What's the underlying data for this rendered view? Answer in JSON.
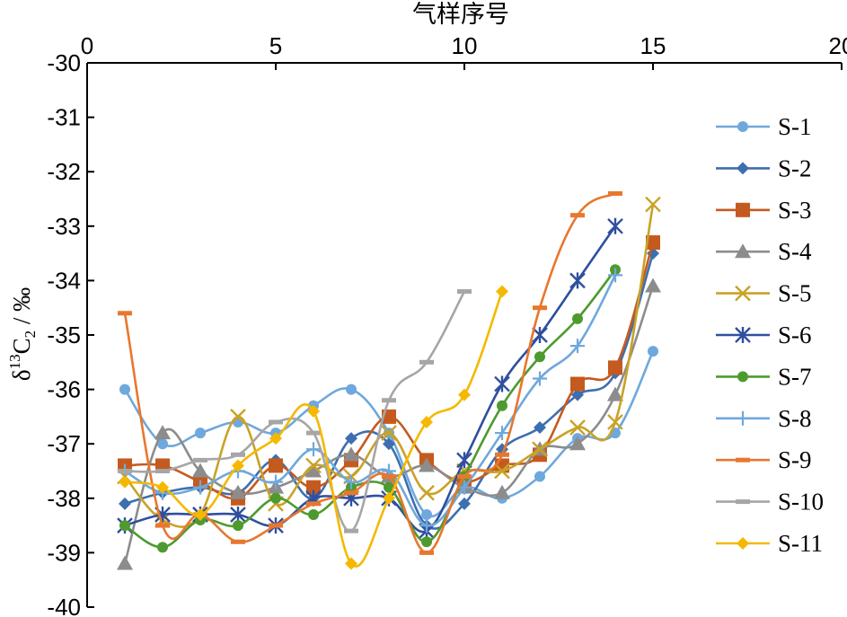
{
  "chart_data": {
    "type": "line",
    "xlabel": "气样序号",
    "ylabel": {
      "prefix": "δ",
      "sup": "13",
      "main": "C",
      "sub": "2",
      "suffix": " / ‰"
    },
    "xlim": [
      0,
      20
    ],
    "ylim": [
      -40,
      -30
    ],
    "x_ticks": [
      "0",
      "5",
      "10",
      "15",
      "20"
    ],
    "y_ticks": [
      "-30",
      "-31",
      "-32",
      "-33",
      "-34",
      "-35",
      "-36",
      "-37",
      "-38",
      "-39",
      "-40"
    ],
    "x_axis_position": "top",
    "y_axis_inverted": true,
    "grid": false,
    "legend_position": "right",
    "series": [
      {
        "name": "S-1",
        "color": "#6fa8dc",
        "marker": "circle",
        "points": [
          [
            1,
            -36.0
          ],
          [
            2,
            -37.0
          ],
          [
            3,
            -36.8
          ],
          [
            4,
            -36.6
          ],
          [
            5,
            -36.8
          ],
          [
            6,
            -36.3
          ],
          [
            7,
            -36.0
          ],
          [
            8,
            -36.8
          ],
          [
            9,
            -38.3
          ],
          [
            10,
            -37.8
          ],
          [
            11,
            -38.0
          ],
          [
            12,
            -37.6
          ],
          [
            13,
            -36.9
          ],
          [
            14,
            -36.8
          ],
          [
            15,
            -35.3
          ]
        ]
      },
      {
        "name": "S-2",
        "color": "#3d6fb0",
        "marker": "diamond",
        "points": [
          [
            1,
            -38.1
          ],
          [
            2,
            -37.9
          ],
          [
            3,
            -37.8
          ],
          [
            4,
            -37.9
          ],
          [
            5,
            -37.3
          ],
          [
            6,
            -38.0
          ],
          [
            7,
            -36.9
          ],
          [
            8,
            -37.0
          ],
          [
            9,
            -38.5
          ],
          [
            10,
            -38.1
          ],
          [
            11,
            -37.1
          ],
          [
            12,
            -36.7
          ],
          [
            13,
            -36.1
          ],
          [
            14,
            -35.7
          ],
          [
            15,
            -33.5
          ]
        ]
      },
      {
        "name": "S-3",
        "color": "#c55a1f",
        "marker": "square",
        "points": [
          [
            1,
            -37.4
          ],
          [
            2,
            -37.4
          ],
          [
            3,
            -37.7
          ],
          [
            4,
            -38.0
          ],
          [
            5,
            -37.4
          ],
          [
            6,
            -37.8
          ],
          [
            7,
            -37.3
          ],
          [
            8,
            -36.5
          ],
          [
            9,
            -37.3
          ],
          [
            10,
            -37.7
          ],
          [
            11,
            -37.4
          ],
          [
            12,
            -37.2
          ],
          [
            13,
            -35.9
          ],
          [
            14,
            -35.6
          ],
          [
            15,
            -33.3
          ]
        ]
      },
      {
        "name": "S-4",
        "color": "#8c8c8c",
        "marker": "triangle",
        "points": [
          [
            1,
            -39.2
          ],
          [
            2,
            -36.8
          ],
          [
            3,
            -37.5
          ],
          [
            4,
            -37.9
          ],
          [
            5,
            -37.8
          ],
          [
            6,
            -37.5
          ],
          [
            7,
            -37.2
          ],
          [
            8,
            -37.6
          ],
          [
            9,
            -37.4
          ],
          [
            10,
            -37.8
          ],
          [
            11,
            -37.9
          ],
          [
            12,
            -37.1
          ],
          [
            13,
            -37.0
          ],
          [
            14,
            -36.1
          ],
          [
            15,
            -34.1
          ]
        ]
      },
      {
        "name": "S-5",
        "color": "#c9a227",
        "marker": "x",
        "points": [
          [
            1,
            -37.6
          ],
          [
            2,
            -38.4
          ],
          [
            3,
            -38.3
          ],
          [
            4,
            -36.5
          ],
          [
            5,
            -38.1
          ],
          [
            6,
            -37.4
          ],
          [
            7,
            -37.6
          ],
          [
            8,
            -36.8
          ],
          [
            9,
            -37.9
          ],
          [
            10,
            -37.5
          ],
          [
            11,
            -37.5
          ],
          [
            12,
            -37.1
          ],
          [
            13,
            -36.7
          ],
          [
            14,
            -36.6
          ],
          [
            15,
            -32.6
          ]
        ]
      },
      {
        "name": "S-6",
        "color": "#2f4f9e",
        "marker": "asterisk",
        "points": [
          [
            1,
            -38.5
          ],
          [
            2,
            -38.3
          ],
          [
            3,
            -38.3
          ],
          [
            4,
            -38.3
          ],
          [
            5,
            -38.5
          ],
          [
            6,
            -38.0
          ],
          [
            7,
            -38.0
          ],
          [
            8,
            -38.0
          ],
          [
            9,
            -38.6
          ],
          [
            10,
            -37.3
          ],
          [
            11,
            -35.9
          ],
          [
            12,
            -35.0
          ],
          [
            13,
            -34.0
          ],
          [
            14,
            -33.0
          ]
        ]
      },
      {
        "name": "S-7",
        "color": "#4e9a2f",
        "marker": "circle",
        "points": [
          [
            1,
            -38.5
          ],
          [
            2,
            -38.9
          ],
          [
            3,
            -38.4
          ],
          [
            4,
            -38.5
          ],
          [
            5,
            -38.0
          ],
          [
            6,
            -38.3
          ],
          [
            7,
            -37.8
          ],
          [
            8,
            -37.8
          ],
          [
            9,
            -38.8
          ],
          [
            10,
            -37.6
          ],
          [
            11,
            -36.3
          ],
          [
            12,
            -35.4
          ],
          [
            13,
            -34.7
          ],
          [
            14,
            -33.8
          ]
        ]
      },
      {
        "name": "S-8",
        "color": "#6fa8dc",
        "marker": "plus",
        "points": [
          [
            1,
            -37.5
          ],
          [
            2,
            -37.9
          ],
          [
            3,
            -37.8
          ],
          [
            4,
            -37.5
          ],
          [
            5,
            -37.7
          ],
          [
            6,
            -37.1
          ],
          [
            7,
            -37.7
          ],
          [
            8,
            -37.5
          ],
          [
            9,
            -38.5
          ],
          [
            10,
            -37.8
          ],
          [
            11,
            -36.8
          ],
          [
            12,
            -35.8
          ],
          [
            13,
            -35.2
          ],
          [
            14,
            -33.9
          ]
        ]
      },
      {
        "name": "S-9",
        "color": "#e8772e",
        "marker": "dash",
        "points": [
          [
            1,
            -34.6
          ],
          [
            2,
            -38.5
          ],
          [
            3,
            -38.3
          ],
          [
            4,
            -38.8
          ],
          [
            5,
            -38.5
          ],
          [
            6,
            -38.1
          ],
          [
            7,
            -37.9
          ],
          [
            8,
            -37.6
          ],
          [
            9,
            -39.0
          ],
          [
            10,
            -37.6
          ],
          [
            11,
            -37.2
          ],
          [
            12,
            -34.5
          ],
          [
            13,
            -32.8
          ],
          [
            14,
            -32.4
          ]
        ]
      },
      {
        "name": "S-10",
        "color": "#a6a6a6",
        "marker": "dash",
        "points": [
          [
            1,
            -37.5
          ],
          [
            2,
            -37.5
          ],
          [
            3,
            -37.3
          ],
          [
            4,
            -37.2
          ],
          [
            5,
            -36.6
          ],
          [
            6,
            -36.8
          ],
          [
            7,
            -38.6
          ],
          [
            8,
            -36.2
          ],
          [
            9,
            -35.5
          ],
          [
            10,
            -34.2
          ]
        ]
      },
      {
        "name": "S-11",
        "color": "#f5b800",
        "marker": "diamond",
        "points": [
          [
            1,
            -37.7
          ],
          [
            2,
            -37.8
          ],
          [
            3,
            -38.3
          ],
          [
            4,
            -37.4
          ],
          [
            5,
            -36.9
          ],
          [
            6,
            -36.4
          ],
          [
            7,
            -39.2
          ],
          [
            8,
            -38.0
          ],
          [
            9,
            -36.6
          ],
          [
            10,
            -36.1
          ],
          [
            11,
            -34.2
          ]
        ]
      }
    ]
  }
}
